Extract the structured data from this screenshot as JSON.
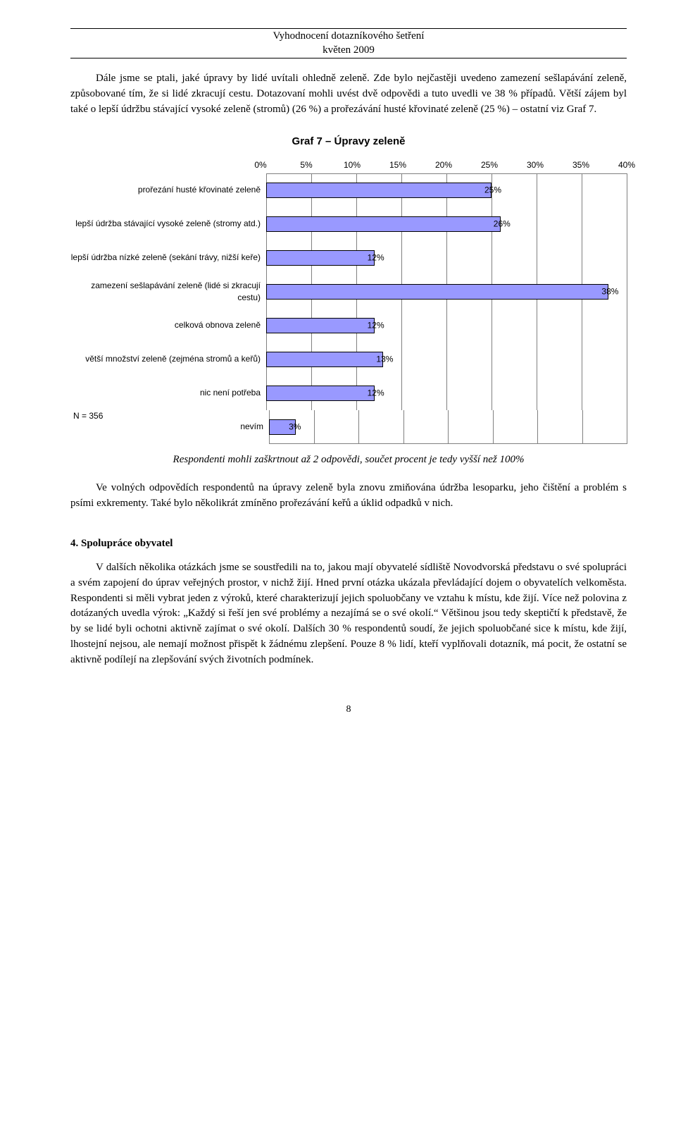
{
  "header": {
    "line1": "Vyhodnocení dotazníkového šetření",
    "line2": "květen 2009"
  },
  "para1": "Dále jsme se ptali, jaké úpravy by lidé uvítali ohledně zeleně. Zde bylo nejčastěji uvedeno zamezení sešlapávání zeleně, způsobované tím, že si lidé zkracují cestu. Dotazovaní mohli uvést dvě odpovědi a tuto uvedli ve 38 % případů. Větší zájem byl také o lepší údržbu stávající vysoké zeleně (stromů) (26 %) a prořezávání husté křovinaté zeleně (25 %) – ostatní viz Graf 7.",
  "chart": {
    "title": "Graf 7 – Úpravy zeleně",
    "xmin": 0,
    "xmax": 40,
    "xtick_step": 5,
    "tick_labels": [
      "0%",
      "5%",
      "10%",
      "15%",
      "20%",
      "25%",
      "30%",
      "35%",
      "40%"
    ],
    "bar_color": "#9999ff",
    "bar_border": "#000000",
    "grid_color": "#808080",
    "bg_color": "#ffffff",
    "n_label": "N = 356",
    "rows": [
      {
        "label": "prořezání husté křovinaté zeleně",
        "value": 25,
        "value_label": "25%"
      },
      {
        "label": "lepší údržba stávající vysoké zeleně (stromy atd.)",
        "value": 26,
        "value_label": "26%"
      },
      {
        "label": "lepší údržba nízké zeleně (sekání trávy, nižší keře)",
        "value": 12,
        "value_label": "12%"
      },
      {
        "label": "zamezení sešlapávání zeleně (lidé si zkracují cestu)",
        "value": 38,
        "value_label": "38%"
      },
      {
        "label": "celková obnova zeleně",
        "value": 12,
        "value_label": "12%"
      },
      {
        "label": "větší množství zeleně (zejména stromů a keřů)",
        "value": 13,
        "value_label": "13%"
      },
      {
        "label": "nic není potřeba",
        "value": 12,
        "value_label": "12%"
      },
      {
        "label": "nevím",
        "value": 3,
        "value_label": "3%"
      }
    ]
  },
  "caption_note": "Respondenti mohli zaškrtnout až 2 odpovědi, součet procent je tedy vyšší než 100%",
  "para2": "Ve volných odpovědích respondentů na úpravy zeleně byla znovu zmiňována údržba lesoparku, jeho čištění a problém s psími exkrementy. Také bylo několikrát zmíněno prořezávání keřů a úklid odpadků v nich.",
  "section4_title": "4. Spolupráce obyvatel",
  "para3": "V dalších několika otázkách jsme se soustředili na to, jakou mají obyvatelé sídliště Novodvorská představu o své spolupráci a svém zapojení do úprav veřejných prostor, v nichž žijí. Hned první otázka ukázala převládající dojem o obyvatelích velkoměsta. Respondenti si měli vybrat jeden z výroků, které charakterizují jejich spoluobčany ve vztahu k místu, kde žijí. Více než polovina z dotázaných uvedla výrok: „Každý si řeší jen své problémy a nezajímá se o své okolí.“ Většinou jsou tedy skeptičtí k představě, že by se lidé byli ochotni aktivně zajímat o své okolí. Dalších 30 % respondentů soudí, že jejich spoluobčané sice k místu, kde žijí, lhostejní nejsou, ale nemají možnost přispět k žádnému zlepšení. Pouze 8 % lidí, kteří vyplňovali dotazník, má pocit, že ostatní se aktivně podílejí na zlepšování svých životních podmínek.",
  "page_number": "8"
}
